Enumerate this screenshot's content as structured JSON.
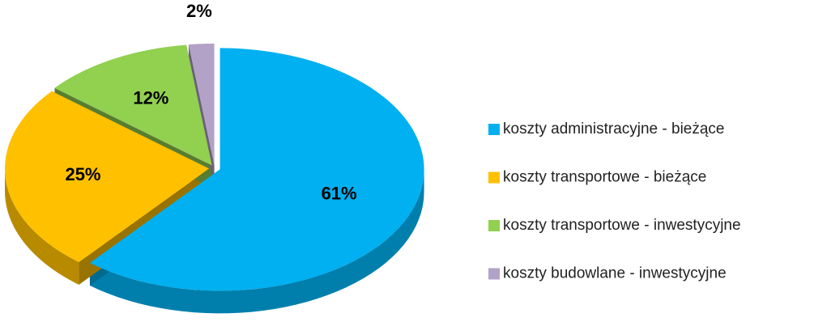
{
  "chart_data": {
    "type": "pie",
    "categories": [
      "koszty administracyjne - bieżące",
      "koszty transportowe - bieżące",
      "koszty transportowe - inwestycyjne",
      "koszty budowlane - inwestycyjne"
    ],
    "values": [
      61,
      25,
      12,
      2
    ],
    "value_labels": [
      "61%",
      "25%",
      "12%",
      "2%"
    ],
    "colors": [
      "#00b0f0",
      "#ffc000",
      "#92d050",
      "#b3a2c7"
    ],
    "legend": "right"
  }
}
